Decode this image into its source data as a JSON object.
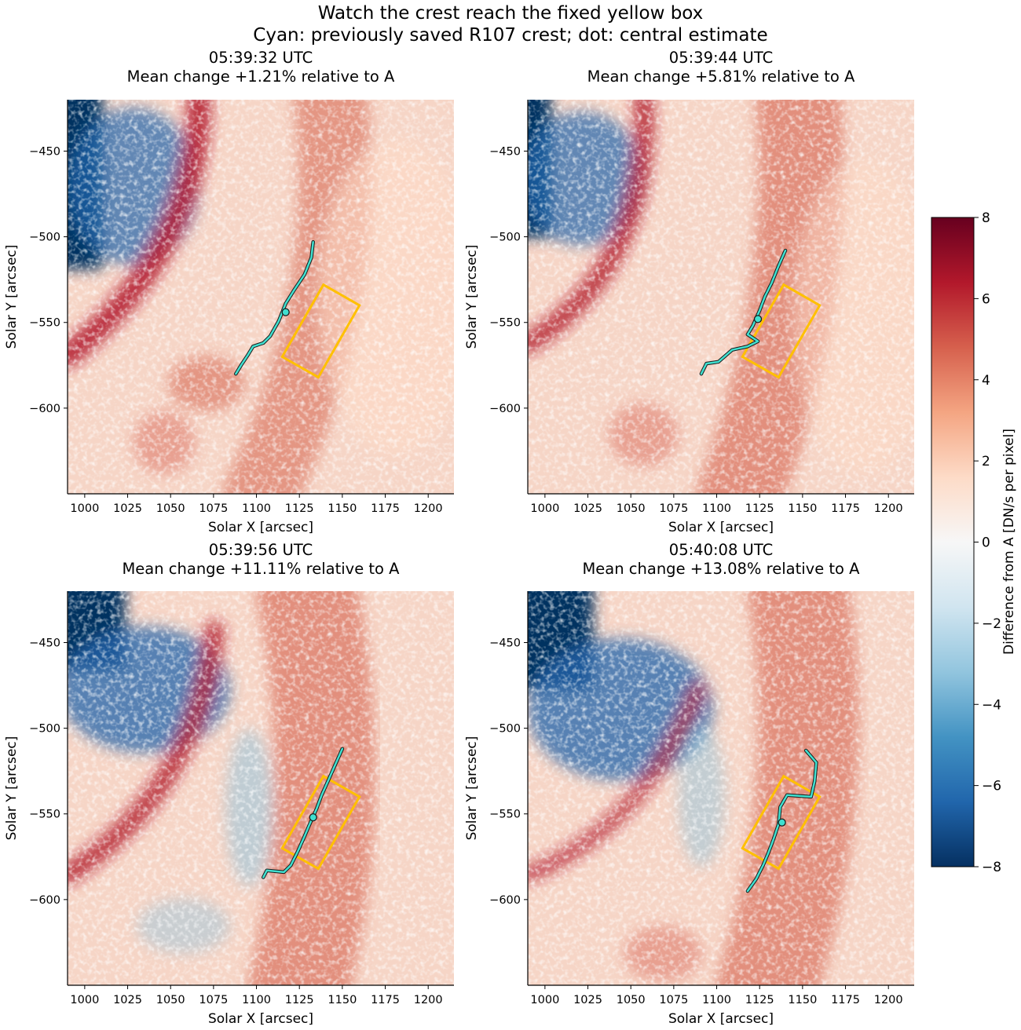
{
  "figure": {
    "title_line1": "Watch the crest reach the fixed yellow box",
    "title_line2": "Cyan: previously saved R107 crest; dot: central estimate"
  },
  "colorbar": {
    "label": "Difference from A [DN/s per pixel]",
    "min": -8,
    "max": 8,
    "ticks": [
      -8,
      -6,
      -4,
      -2,
      0,
      2,
      4,
      6,
      8
    ],
    "colormap": "RdBu_r"
  },
  "colors": {
    "crest": "#40e0d0",
    "crest_edge": "#1a1a1a",
    "box": "#ffc000"
  },
  "chart_data": [
    {
      "type": "heatmap",
      "title_time": "05:39:32 UTC",
      "title_change": "Mean change +1.21% relative to A",
      "xlabel": "Solar X [arcsec]",
      "ylabel": "Solar Y [arcsec]",
      "xlim": [
        990,
        1215
      ],
      "ylim": [
        -650,
        -420
      ],
      "xticks": [
        1000,
        1025,
        1050,
        1075,
        1100,
        1125,
        1150,
        1175,
        1200
      ],
      "yticks": [
        -450,
        -500,
        -550,
        -600
      ],
      "crest": [
        [
          1133,
          -503
        ],
        [
          1132,
          -512
        ],
        [
          1128,
          -522
        ],
        [
          1122,
          -531
        ],
        [
          1117,
          -539
        ],
        [
          1113,
          -549
        ],
        [
          1108,
          -558
        ],
        [
          1104,
          -562
        ],
        [
          1098,
          -564
        ],
        [
          1095,
          -569
        ],
        [
          1091,
          -575
        ],
        [
          1088,
          -580
        ]
      ],
      "dot": [
        1117,
        -544
      ],
      "box": [
        [
          1115,
          -570
        ],
        [
          1136,
          -582
        ],
        [
          1160,
          -540
        ],
        [
          1139,
          -528
        ]
      ]
    },
    {
      "type": "heatmap",
      "title_time": "05:39:44 UTC",
      "title_change": "Mean change +5.81% relative to A",
      "xlabel": "Solar X [arcsec]",
      "ylabel": "Solar Y [arcsec]",
      "xlim": [
        990,
        1215
      ],
      "ylim": [
        -650,
        -420
      ],
      "xticks": [
        1000,
        1025,
        1050,
        1075,
        1100,
        1125,
        1150,
        1175,
        1200
      ],
      "yticks": [
        -450,
        -500,
        -550,
        -600
      ],
      "crest": [
        [
          1140,
          -508
        ],
        [
          1136,
          -517
        ],
        [
          1132,
          -527
        ],
        [
          1128,
          -535
        ],
        [
          1125,
          -543
        ],
        [
          1121,
          -552
        ],
        [
          1118,
          -557
        ],
        [
          1124,
          -561
        ],
        [
          1118,
          -564
        ],
        [
          1109,
          -566
        ],
        [
          1101,
          -573
        ],
        [
          1094,
          -574
        ],
        [
          1091,
          -580
        ]
      ],
      "dot": [
        1124,
        -548
      ],
      "box": [
        [
          1115,
          -570
        ],
        [
          1136,
          -582
        ],
        [
          1160,
          -540
        ],
        [
          1139,
          -528
        ]
      ]
    },
    {
      "type": "heatmap",
      "title_time": "05:39:56 UTC",
      "title_change": "Mean change +11.11% relative to A",
      "xlabel": "Solar X [arcsec]",
      "ylabel": "Solar Y [arcsec]",
      "xlim": [
        990,
        1215
      ],
      "ylim": [
        -650,
        -420
      ],
      "xticks": [
        1000,
        1025,
        1050,
        1075,
        1100,
        1125,
        1150,
        1175,
        1200
      ],
      "yticks": [
        -450,
        -500,
        -550,
        -600
      ],
      "crest": [
        [
          1150,
          -512
        ],
        [
          1146,
          -521
        ],
        [
          1142,
          -530
        ],
        [
          1138,
          -539
        ],
        [
          1135,
          -547
        ],
        [
          1131,
          -556
        ],
        [
          1128,
          -563
        ],
        [
          1124,
          -572
        ],
        [
          1120,
          -580
        ],
        [
          1116,
          -584
        ],
        [
          1106,
          -583
        ],
        [
          1104,
          -587
        ]
      ],
      "dot": [
        1133,
        -552
      ],
      "box": [
        [
          1115,
          -570
        ],
        [
          1136,
          -582
        ],
        [
          1160,
          -540
        ],
        [
          1139,
          -528
        ]
      ]
    },
    {
      "type": "heatmap",
      "title_time": "05:40:08 UTC",
      "title_change": "Mean change +13.08% relative to A",
      "xlabel": "Solar X [arcsec]",
      "ylabel": "Solar Y [arcsec]",
      "xlim": [
        990,
        1215
      ],
      "ylim": [
        -650,
        -420
      ],
      "xticks": [
        1000,
        1025,
        1050,
        1075,
        1100,
        1125,
        1150,
        1175,
        1200
      ],
      "yticks": [
        -450,
        -500,
        -550,
        -600
      ],
      "crest": [
        [
          1152,
          -513
        ],
        [
          1158,
          -520
        ],
        [
          1157,
          -531
        ],
        [
          1155,
          -540
        ],
        [
          1141,
          -539
        ],
        [
          1137,
          -546
        ],
        [
          1136,
          -556
        ],
        [
          1133,
          -565
        ],
        [
          1130,
          -573
        ],
        [
          1127,
          -580
        ],
        [
          1123,
          -588
        ],
        [
          1118,
          -595
        ]
      ],
      "dot": [
        1138,
        -555
      ],
      "box": [
        [
          1115,
          -570
        ],
        [
          1136,
          -582
        ],
        [
          1160,
          -540
        ],
        [
          1139,
          -528
        ]
      ]
    }
  ]
}
